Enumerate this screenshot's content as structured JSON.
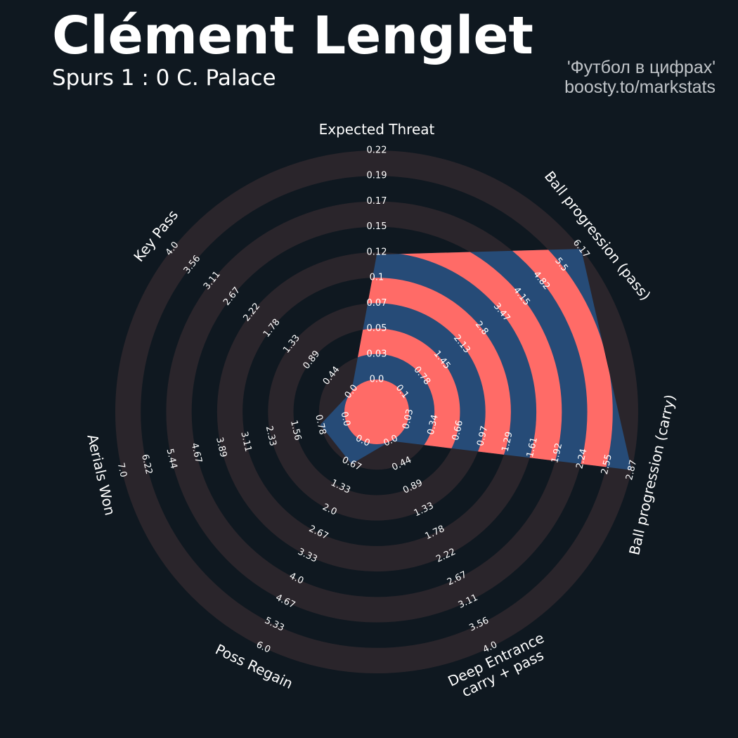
{
  "header": {
    "title": "Clément Lenglet",
    "subtitle": "Spurs 1 : 0 C. Palace",
    "credit_line1": "'Футбол в цифрах'",
    "credit_line2": "boosty.to/markstats"
  },
  "colors": {
    "background": "#0f1820",
    "ring": "#2a252b",
    "player": "#264b77",
    "highlight": "#ff6b67",
    "text": "#ffffff"
  },
  "chart_data": {
    "type": "radar",
    "ring_count": 9,
    "params": [
      {
        "label": "Expected Threat",
        "value": 0.12,
        "max": 0.22,
        "ticks": [
          "0.0",
          "0.03",
          "0.05",
          "0.07",
          "0.1",
          "0.12",
          "0.15",
          "0.17",
          "0.19",
          "0.22"
        ]
      },
      {
        "label": "Ball progression (pass)",
        "value": 6.17,
        "max": 6.17,
        "ticks": [
          "0.1",
          "0.78",
          "1.45",
          "2.13",
          "2.8",
          "3.47",
          "4.15",
          "4.82",
          "5.5",
          "6.17"
        ]
      },
      {
        "label": "Ball progression (carry)",
        "value": 2.87,
        "max": 2.87,
        "ticks": [
          "0.03",
          "0.34",
          "0.66",
          "0.97",
          "1.29",
          "1.61",
          "1.92",
          "2.24",
          "2.55",
          "2.87"
        ]
      },
      {
        "label": "Deep Entrance\ncarry + pass",
        "value": 0.0,
        "max": 4.0,
        "ticks": [
          "0.0",
          "0.44",
          "0.89",
          "1.33",
          "1.78",
          "2.22",
          "2.67",
          "3.11",
          "3.56",
          "4.0"
        ]
      },
      {
        "label": "Poss Regain",
        "value": 0.67,
        "max": 6.0,
        "ticks": [
          "0.0",
          "0.67",
          "1.33",
          "2.0",
          "2.67",
          "3.33",
          "4.0",
          "4.67",
          "5.33",
          "6.0"
        ]
      },
      {
        "label": "Aerials Won",
        "value": 0.78,
        "max": 7.0,
        "ticks": [
          "0.0",
          "0.78",
          "1.56",
          "2.33",
          "3.11",
          "3.89",
          "4.67",
          "5.44",
          "6.22",
          "7.0"
        ]
      },
      {
        "label": "Key Pass",
        "value": 0.0,
        "max": 4.0,
        "ticks": [
          "0.0",
          "0.44",
          "0.89",
          "1.33",
          "1.78",
          "2.22",
          "2.67",
          "3.11",
          "3.56",
          "4.0"
        ]
      }
    ]
  }
}
